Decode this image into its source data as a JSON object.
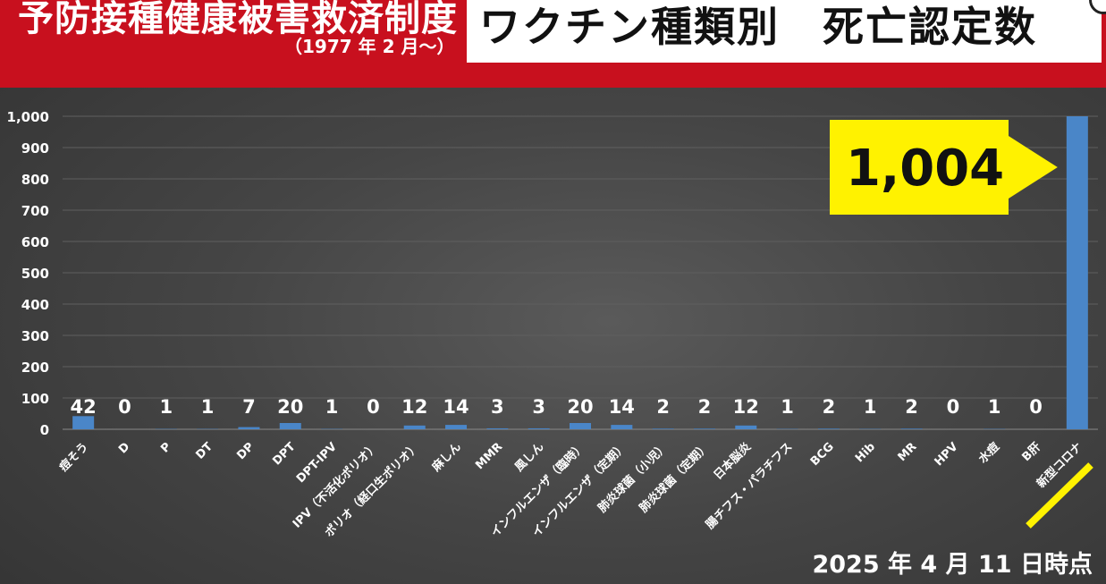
{
  "header": {
    "title": "予防接種健康被害救済制度",
    "subtitle": "（1977 年 2 月〜）",
    "chart_title": "ワクチン種類別　死亡認定数"
  },
  "callout": {
    "label": "1,004",
    "color": "#fff200"
  },
  "footer": {
    "date": "2025 年 4 月 11 日時点"
  },
  "colors": {
    "bar": "#4a86c8",
    "banner": "#c8101e",
    "highlight": "#fff200"
  },
  "chart_data": {
    "type": "bar",
    "title": "ワクチン種類別　死亡認定数",
    "categories": [
      "痘そう",
      "D",
      "P",
      "DT",
      "DP",
      "DPT",
      "DPT-IPV",
      "IPV（不活化ポリオ）",
      "ポリオ（経口生ポリオ）",
      "麻しん",
      "MMR",
      "風しん",
      "インフルエンザ（臨時）",
      "インフルエンザ（定期）",
      "肺炎球菌（小児）",
      "肺炎球菌（定期）",
      "日本脳炎",
      "腸チフス・パラチフス",
      "BCG",
      "Hib",
      "MR",
      "HPV",
      "水痘",
      "B肝",
      "新型コロナ"
    ],
    "values": [
      42,
      0,
      1,
      1,
      7,
      20,
      1,
      0,
      12,
      14,
      3,
      3,
      20,
      14,
      2,
      2,
      12,
      1,
      2,
      1,
      2,
      0,
      1,
      0,
      1004
    ],
    "value_labels": [
      "42",
      "0",
      "1",
      "1",
      "7",
      "20",
      "1",
      "0",
      "12",
      "14",
      "3",
      "3",
      "20",
      "14",
      "2",
      "2",
      "12",
      "1",
      "2",
      "1",
      "2",
      "0",
      "1",
      "0",
      ""
    ],
    "yticks": [
      "0",
      "100",
      "200",
      "300",
      "400",
      "500",
      "600",
      "700",
      "800",
      "900",
      "1,000"
    ],
    "ylim": [
      0,
      1000
    ],
    "grid": true,
    "xlabel": "",
    "ylabel": ""
  }
}
